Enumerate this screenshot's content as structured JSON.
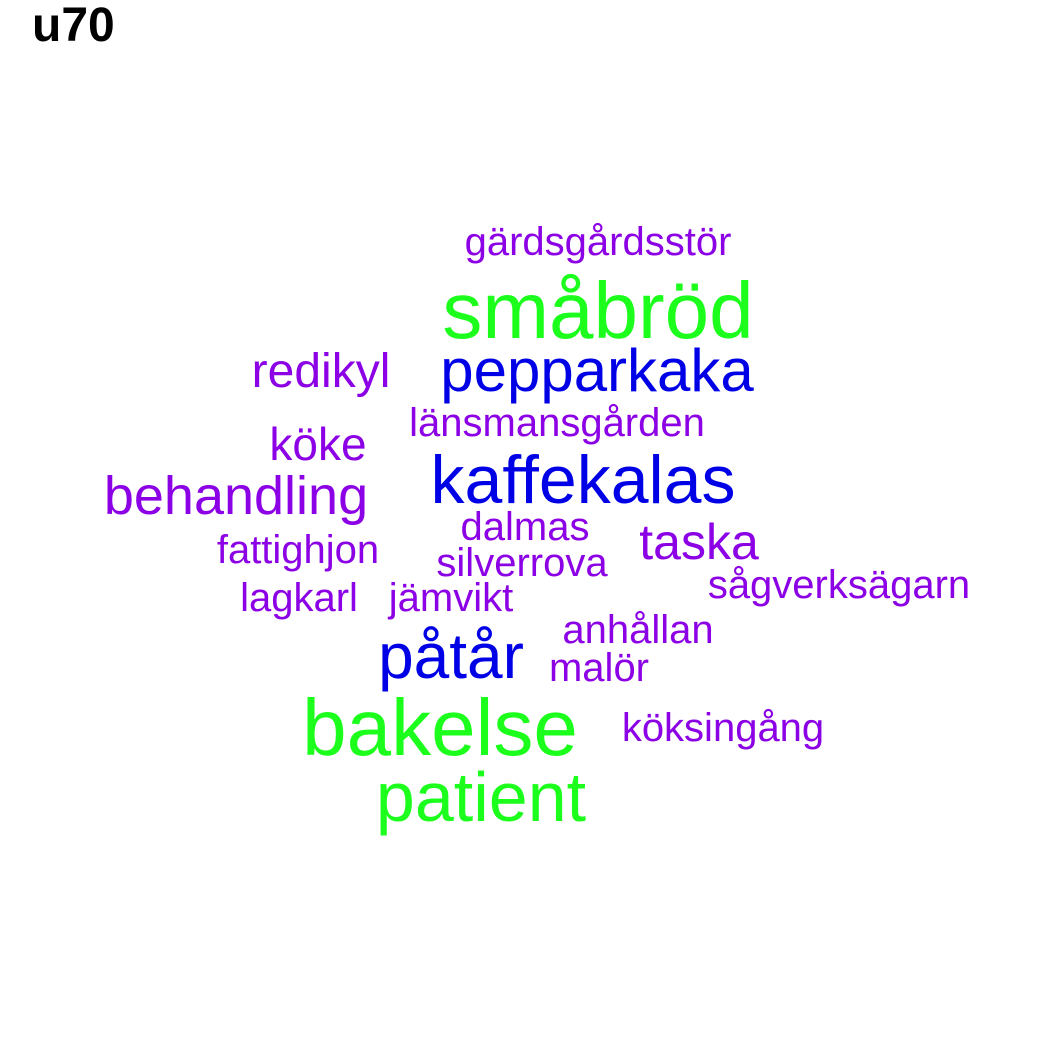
{
  "title": "u70",
  "colors": {
    "green": "#1cff1c",
    "blue": "#0000e6",
    "purple": "#8c00e6"
  },
  "words": [
    {
      "text": "gärdsgårdsstör",
      "color": "purple"
    },
    {
      "text": "småbröd",
      "color": "green"
    },
    {
      "text": "redikyl",
      "color": "purple"
    },
    {
      "text": "pepparkaka",
      "color": "blue"
    },
    {
      "text": "länsmansgården",
      "color": "purple"
    },
    {
      "text": "köke",
      "color": "purple"
    },
    {
      "text": "kaffekalas",
      "color": "blue"
    },
    {
      "text": "behandling",
      "color": "purple"
    },
    {
      "text": "dalmas",
      "color": "purple"
    },
    {
      "text": "taska",
      "color": "purple"
    },
    {
      "text": "fattighjon",
      "color": "purple"
    },
    {
      "text": "silverrova",
      "color": "purple"
    },
    {
      "text": "sågverksägarn",
      "color": "purple"
    },
    {
      "text": "lagkarl",
      "color": "purple"
    },
    {
      "text": "jämvikt",
      "color": "purple"
    },
    {
      "text": "anhållan",
      "color": "purple"
    },
    {
      "text": "påtår",
      "color": "blue"
    },
    {
      "text": "malör",
      "color": "purple"
    },
    {
      "text": "bakelse",
      "color": "green"
    },
    {
      "text": "köksingång",
      "color": "purple"
    },
    {
      "text": "patient",
      "color": "green"
    }
  ]
}
